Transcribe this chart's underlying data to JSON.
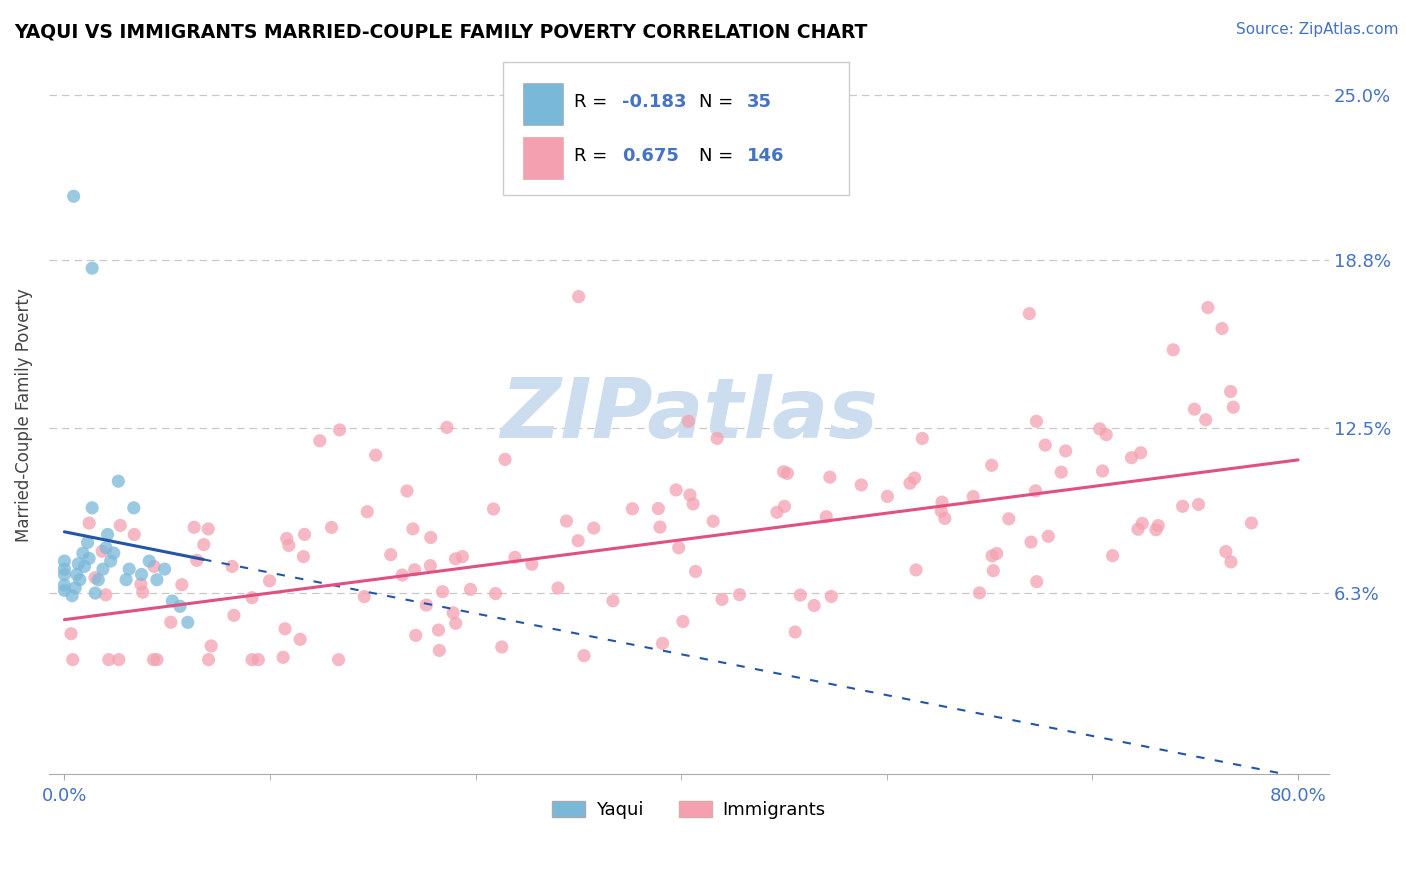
{
  "title": "YAQUI VS IMMIGRANTS MARRIED-COUPLE FAMILY POVERTY CORRELATION CHART",
  "source_text": "Source: ZipAtlas.com",
  "ylabel": "Married-Couple Family Poverty",
  "xlim": [
    -0.01,
    0.82
  ],
  "ylim": [
    -0.005,
    0.265
  ],
  "yticks": [
    0.063,
    0.125,
    0.188,
    0.25
  ],
  "ytick_labels": [
    "6.3%",
    "12.5%",
    "18.8%",
    "25.0%"
  ],
  "yaqui_color": "#7ab8d9",
  "immigrants_color": "#f4a0b0",
  "yaqui_line_color": "#2255aa",
  "immigrants_line_color": "#e05080",
  "text_color": "#4472c4",
  "watermark": "ZIPatlas",
  "watermark_color": "#ccddef",
  "grid_color": "#c8c8c8",
  "yaqui_slope": -0.115,
  "yaqui_intercept": 0.086,
  "imm_slope": 0.075,
  "imm_intercept": 0.053,
  "legend_text_color": "#4472c4",
  "legend_r1": "R = -0.183",
  "legend_n1": "35",
  "legend_r2": "R =  0.675",
  "legend_n2": "146"
}
